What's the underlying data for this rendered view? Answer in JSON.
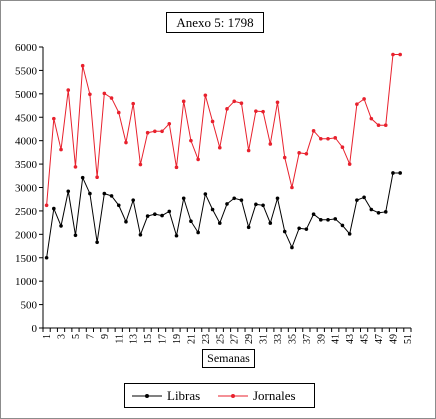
{
  "chart_data": {
    "type": "line",
    "title": "Anexo 5: 1798",
    "xlabel": "Semanas",
    "ylabel": "",
    "ylim": [
      0,
      6000
    ],
    "yticks": [
      "0",
      "500",
      "1000",
      "1500",
      "2000",
      "2500",
      "3000",
      "3500",
      "4000",
      "4500",
      "5000",
      "5500",
      "6000"
    ],
    "xticks": [
      "1",
      "3",
      "5",
      "7",
      "9",
      "11",
      "13",
      "15",
      "17",
      "19",
      "21",
      "23",
      "25",
      "27",
      "29",
      "31",
      "33",
      "35",
      "37",
      "39",
      "41",
      "43",
      "45",
      "47",
      "49",
      "51"
    ],
    "x": [
      1,
      2,
      3,
      4,
      5,
      6,
      7,
      8,
      9,
      10,
      11,
      12,
      13,
      14,
      15,
      16,
      17,
      18,
      19,
      20,
      21,
      22,
      23,
      24,
      25,
      26,
      27,
      28,
      29,
      30,
      31,
      32,
      33,
      34,
      35,
      36,
      37,
      38,
      39,
      40,
      41,
      42,
      43,
      44,
      45,
      46,
      47,
      48,
      49,
      50
    ],
    "grid": false,
    "legend_position": "bottom",
    "series": [
      {
        "name": "Libras",
        "color": "#000000",
        "values": [
          1500,
          2550,
          2180,
          2920,
          1980,
          3210,
          2870,
          1830,
          2870,
          2820,
          2620,
          2270,
          2730,
          1990,
          2390,
          2430,
          2400,
          2490,
          1970,
          2770,
          2280,
          2040,
          2860,
          2530,
          2240,
          2650,
          2770,
          2730,
          2150,
          2640,
          2620,
          2240,
          2770,
          2060,
          1720,
          2130,
          2110,
          2430,
          2310,
          2310,
          2330,
          2190,
          2010,
          2730,
          2790,
          2530,
          2460,
          2480,
          3310,
          3310
        ]
      },
      {
        "name": "Jornales",
        "color": "#e8212d",
        "values": [
          2620,
          4470,
          3810,
          5080,
          3440,
          5600,
          4990,
          3220,
          5010,
          4910,
          4600,
          3960,
          4790,
          3490,
          4170,
          4200,
          4200,
          4360,
          3430,
          4840,
          4000,
          3600,
          4970,
          4410,
          3850,
          4680,
          4840,
          4800,
          3790,
          4630,
          4620,
          3930,
          4820,
          3640,
          3000,
          3740,
          3720,
          4210,
          4040,
          4040,
          4060,
          3860,
          3500,
          4780,
          4890,
          4470,
          4330,
          4330,
          5840,
          5840
        ]
      }
    ]
  }
}
